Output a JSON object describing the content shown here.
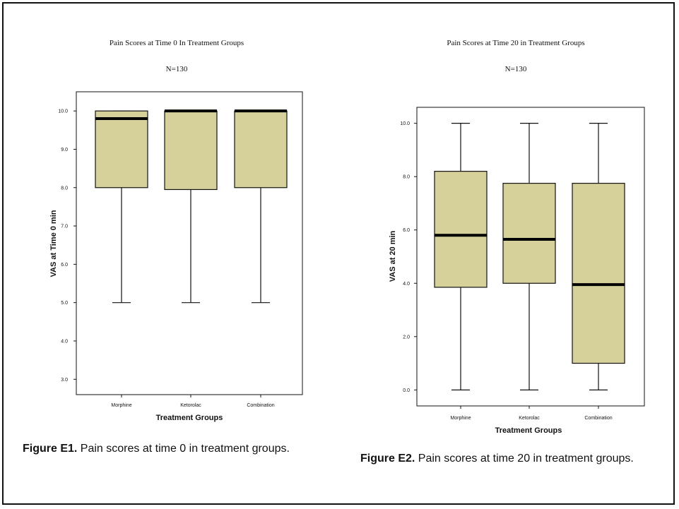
{
  "chart_data": [
    {
      "type": "boxplot",
      "title": "Pain Scores at Time 0 In Treatment Groups",
      "subtitle": "N=130",
      "xlabel": "Treatment Groups",
      "ylabel": "VAS at Time 0 min",
      "ylim": [
        2.6,
        10.5
      ],
      "yticks": [
        3.0,
        4.0,
        5.0,
        6.0,
        7.0,
        8.0,
        9.0,
        10.0
      ],
      "ytick_labels": [
        "3.0",
        "4.0",
        "5.0",
        "6.0",
        "7.0",
        "8.0",
        "9.0",
        "10.0"
      ],
      "box_color": "#d6d19a",
      "categories": [
        "Morphine",
        "Ketorolac",
        "Combination"
      ],
      "boxes": [
        {
          "min": 5.0,
          "q1": 8.0,
          "median": 9.8,
          "q3": 10.0,
          "max": 10.0
        },
        {
          "min": 5.0,
          "q1": 7.95,
          "median": 10.0,
          "q3": 10.0,
          "max": 10.0
        },
        {
          "min": 5.0,
          "q1": 8.0,
          "median": 10.0,
          "q3": 10.0,
          "max": 10.0
        }
      ],
      "caption_label": "Figure E1.",
      "caption_text": " Pain scores at time 0 in treatment groups."
    },
    {
      "type": "boxplot",
      "title": "Pain Scores at Time 20 in Treatment Groups",
      "subtitle": "N=130",
      "xlabel": "Treatment Groups",
      "ylabel": "VAS at 20 min",
      "ylim": [
        -0.6,
        10.6
      ],
      "yticks": [
        0.0,
        2.0,
        4.0,
        6.0,
        8.0,
        10.0
      ],
      "ytick_labels": [
        "0.0",
        "2.0",
        "4.0",
        "6.0",
        "8.0",
        "10.0"
      ],
      "box_color": "#d6d19a",
      "categories": [
        "Morphine",
        "Ketorolac",
        "Combination"
      ],
      "boxes": [
        {
          "min": 0.0,
          "q1": 3.85,
          "median": 5.8,
          "q3": 8.2,
          "max": 10.0
        },
        {
          "min": 0.0,
          "q1": 4.0,
          "median": 5.65,
          "q3": 7.75,
          "max": 10.0
        },
        {
          "min": 0.0,
          "q1": 1.0,
          "median": 3.95,
          "q3": 7.75,
          "max": 10.0
        }
      ],
      "caption_label": "Figure E2.",
      "caption_text": " Pain scores at time 20 in treatment groups."
    }
  ]
}
